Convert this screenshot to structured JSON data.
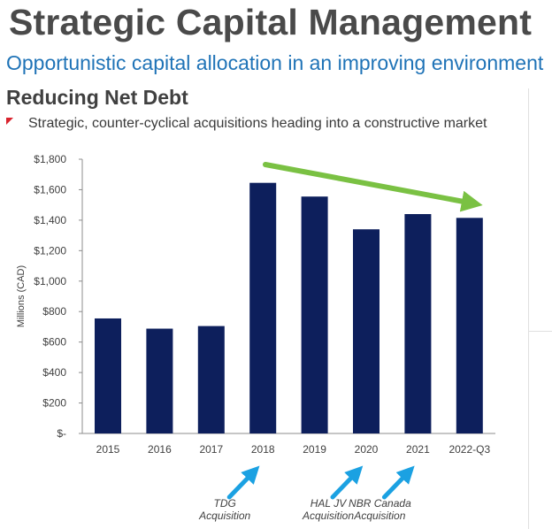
{
  "header": {
    "title": "Strategic Capital Management",
    "subtitle": "Opportunistic capital allocation in an improving environment"
  },
  "section": {
    "heading": "Reducing Net Debt",
    "bullet": "Strategic, counter-cyclical acquisitions heading into a constructive market"
  },
  "colors": {
    "bar": "#0d1f5c",
    "trend_arrow": "#7ac143",
    "annotation_arrow": "#1ba1e2",
    "bullet_marker": "#d9232d"
  },
  "chart_data": {
    "type": "bar",
    "categories": [
      "2015",
      "2016",
      "2017",
      "2018",
      "2019",
      "2020",
      "2021",
      "2022-Q3"
    ],
    "values": [
      755,
      688,
      705,
      1645,
      1555,
      1340,
      1440,
      1415
    ],
    "ylabel": "Millions (CAD)",
    "ylim": [
      0,
      1800
    ],
    "yticks": [
      0,
      200,
      400,
      600,
      800,
      1000,
      1200,
      1400,
      1600,
      1800
    ],
    "ytick_labels": [
      "$-",
      "$200",
      "$400",
      "$600",
      "$800",
      "$1,000",
      "$1,200",
      "$1,400",
      "$1,600",
      "$1,800"
    ],
    "grid": false,
    "trend_arrow": {
      "from": "2018",
      "to": "2022-Q3",
      "direction": "downward"
    },
    "annotations": [
      {
        "category": "2018",
        "lines": [
          "TDG",
          "Acquisition"
        ]
      },
      {
        "category": "2020",
        "lines": [
          "HAL JV",
          "Acquisition"
        ]
      },
      {
        "category": "2021",
        "lines": [
          "NBR Canada",
          "Acquisition"
        ]
      }
    ]
  }
}
